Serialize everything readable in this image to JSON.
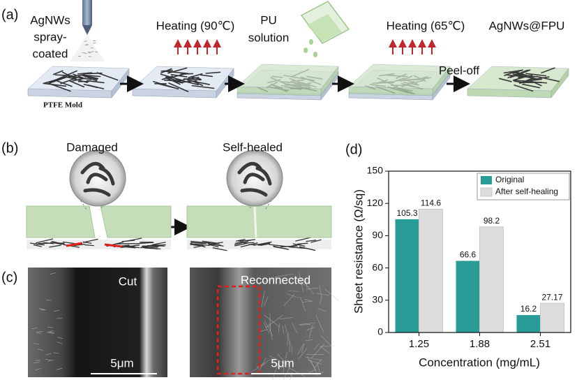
{
  "panel_a": {
    "label": "(a)",
    "spray_label": [
      "AgNWs",
      "spray-",
      "coated"
    ],
    "mold": "PTFE Mold",
    "heating_1": "Heating (90℃)",
    "pu_solution": [
      "PU",
      "solution"
    ],
    "heating_2": "Heating (65℃)",
    "peel_off": "Peel-off",
    "product": "AgNWs@FPU"
  },
  "panel_b": {
    "label": "(b)",
    "damaged": "Damaged",
    "healed": "Self-healed"
  },
  "panel_c": {
    "label": "(c)",
    "cut": "Cut",
    "scale_1": "5μm",
    "reconnected": "Reconnected",
    "scale_2": "5μm"
  },
  "chart_data": {
    "panel_label": "(d)",
    "type": "bar",
    "categories": [
      "1.25",
      "1.88",
      "2.51"
    ],
    "series": [
      {
        "name": "Original",
        "color": "#2a9c98",
        "values": [
          105.3,
          66.6,
          16.2
        ]
      },
      {
        "name": "After self-healing",
        "color": "#dcdcdc",
        "values": [
          114.6,
          98.2,
          27.17
        ]
      }
    ],
    "x_label": "Concentration (mg/mL)",
    "y_label": "Sheet resistance (Ω/sq)",
    "ylim": [
      0,
      150
    ],
    "yticks": [
      0,
      30,
      60,
      90,
      120,
      150
    ],
    "legend": "upper right",
    "value_labels_shown": true
  }
}
